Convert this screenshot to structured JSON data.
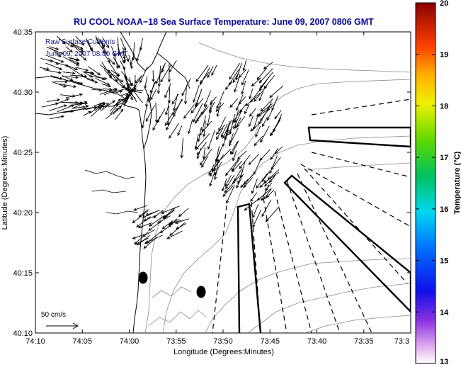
{
  "figure": {
    "title": "RU COOL  NOAA−18  Sea Surface Temperature:  June 09, 2007 0806 GMT",
    "x_label": "Longitude (Degrees:Minutes)",
    "y_label": "Latitude (Degrees:Minutes)",
    "inset_line1": "Raw Surface Currents",
    "inset_line2": "June 09, 2007 08:00 GMT",
    "scale_label": "50 cm/s",
    "colorbar_label": "Temperature (°C)"
  },
  "chart_data": {
    "type": "map",
    "x_ticks": [
      "74:10",
      "74:05",
      "74:00",
      "73:55",
      "73:50",
      "73:45",
      "73:40",
      "73:35",
      "73:3"
    ],
    "y_ticks": [
      "40:35",
      "40:30",
      "40:25",
      "40:20",
      "40:15",
      "40:10"
    ],
    "colorbar_ticks": [
      "20",
      "19",
      "18",
      "17",
      "16",
      "15",
      "14",
      "13"
    ],
    "colorbar_range": [
      13,
      20
    ],
    "vector_scale_cm_s": 50,
    "grid": false
  }
}
